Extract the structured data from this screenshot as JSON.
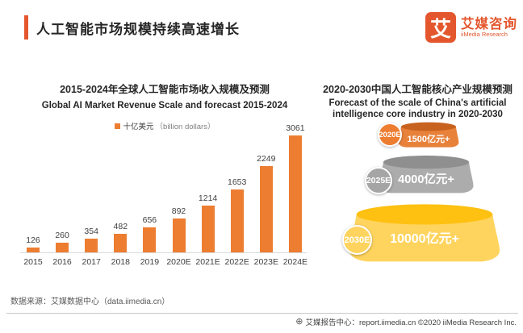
{
  "brand": {
    "accent_color": "#E4572E"
  },
  "header": {
    "title": "人工智能市场规模持续高速增长",
    "logo_mark": "艾",
    "logo_cn": "艾媒咨询",
    "logo_en": "iiMedia Research"
  },
  "chart_data": [
    {
      "type": "bar",
      "title": "2015-2024年全球人工智能市场收入规模及预测",
      "subtitle": "Global AI Market Revenue Scale and forecast 2015-2024",
      "legend_label": "十亿美元",
      "legend_label_en": "（billion dollars）",
      "categories": [
        "2015",
        "2016",
        "2017",
        "2018",
        "2019",
        "2020E",
        "2021E",
        "2022E",
        "2023E",
        "2024E"
      ],
      "values": [
        126,
        260,
        354,
        482,
        656,
        892,
        1214,
        1653,
        2249,
        3061
      ],
      "bar_color": "#ED7D31",
      "ylim": [
        0,
        3200
      ],
      "grid": false,
      "value_labels": true,
      "legend_position": "top-center"
    },
    {
      "type": "funnel",
      "title": "2020-2030中国人工智能核心产业规模预测",
      "subtitle": "Forecast of the scale of China's artificial intelligence core industry in 2020-2030",
      "levels": [
        {
          "year": "2020E",
          "value_label": "1500亿元+",
          "body_color": "#E8823B",
          "top_color": "#C8631F",
          "badge_color": "#ED7D31"
        },
        {
          "year": "2025E",
          "value_label": "4000亿元+",
          "body_color": "#ACACAC",
          "top_color": "#8F8F8F",
          "badge_color": "#A5A5A5"
        },
        {
          "year": "2030E",
          "value_label": "10000亿元+",
          "body_color": "#FFD45E",
          "top_color": "#FEC011",
          "badge_color": "#FFD45E"
        }
      ]
    }
  ],
  "footer": {
    "source": "数据来源：艾媒数据中心（data.iimedia.cn）",
    "globe_icon": "⊕",
    "report": "艾媒报告中心：report.iimedia.cn  ©2020  iiMedia Research Inc."
  }
}
